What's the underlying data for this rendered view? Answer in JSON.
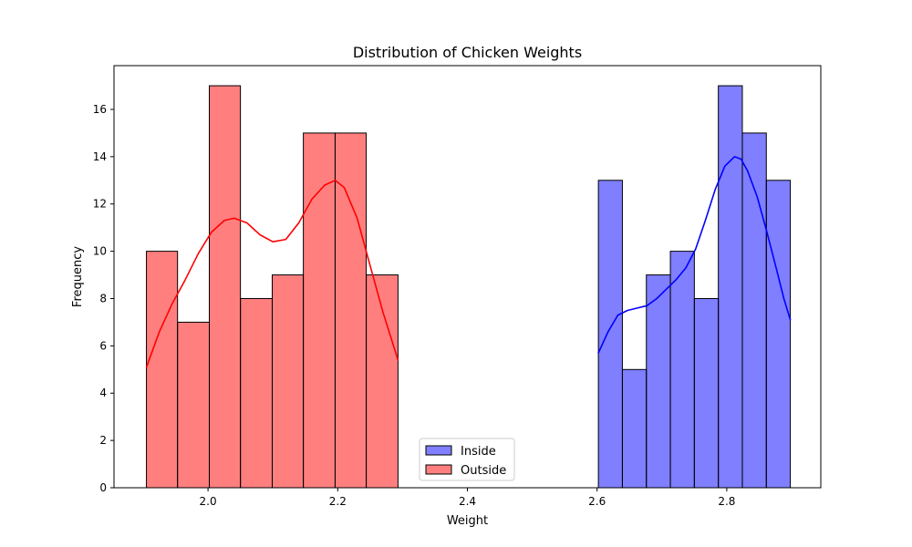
{
  "chart_data": {
    "type": "bar",
    "title": "Distribution of Chicken Weights",
    "xlabel": "Weight",
    "ylabel": "Frequency",
    "xlim": [
      1.855,
      2.945
    ],
    "ylim": [
      0,
      17.85
    ],
    "xticks": [
      2.0,
      2.2,
      2.4,
      2.6,
      2.8
    ],
    "xtick_labels": [
      "2.0",
      "2.2",
      "2.4",
      "2.6",
      "2.8"
    ],
    "yticks": [
      0,
      2,
      4,
      6,
      8,
      10,
      12,
      14,
      16
    ],
    "ytick_labels": [
      "0",
      "2",
      "4",
      "6",
      "8",
      "10",
      "12",
      "14",
      "16"
    ],
    "grid": false,
    "legend_position": "lower-center",
    "series": [
      {
        "name": "Inside",
        "color": "#0000ff",
        "bin_edges": [
          2.602,
          2.639,
          2.676,
          2.713,
          2.75,
          2.787,
          2.824,
          2.861,
          2.898
        ],
        "values": [
          13,
          5,
          9,
          10,
          8,
          17,
          15,
          13
        ],
        "kde": {
          "x": [
            2.602,
            2.617,
            2.632,
            2.647,
            2.662,
            2.677,
            2.692,
            2.707,
            2.722,
            2.737,
            2.752,
            2.767,
            2.782,
            2.797,
            2.812,
            2.822,
            2.832,
            2.847,
            2.862,
            2.877,
            2.888,
            2.898
          ],
          "y": [
            5.7,
            6.6,
            7.3,
            7.5,
            7.6,
            7.7,
            8.0,
            8.4,
            8.8,
            9.3,
            10.1,
            11.3,
            12.6,
            13.6,
            14.0,
            13.9,
            13.4,
            12.3,
            10.8,
            9.2,
            8.0,
            7.1
          ]
        }
      },
      {
        "name": "Outside",
        "color": "#ff0000",
        "bin_edges": [
          1.905,
          1.953,
          2.002,
          2.05,
          2.099,
          2.147,
          2.196,
          2.244,
          2.293
        ],
        "values": [
          10,
          7,
          17,
          8,
          9,
          15,
          15,
          9
        ],
        "kde": {
          "x": [
            1.905,
            1.925,
            1.945,
            1.965,
            1.985,
            2.005,
            2.025,
            2.04,
            2.06,
            2.08,
            2.1,
            2.12,
            2.14,
            2.16,
            2.18,
            2.196,
            2.21,
            2.23,
            2.25,
            2.27,
            2.293
          ],
          "y": [
            5.1,
            6.6,
            7.8,
            8.8,
            9.9,
            10.8,
            11.3,
            11.4,
            11.2,
            10.7,
            10.4,
            10.5,
            11.2,
            12.2,
            12.8,
            13.0,
            12.7,
            11.4,
            9.4,
            7.4,
            5.4
          ]
        }
      }
    ]
  }
}
